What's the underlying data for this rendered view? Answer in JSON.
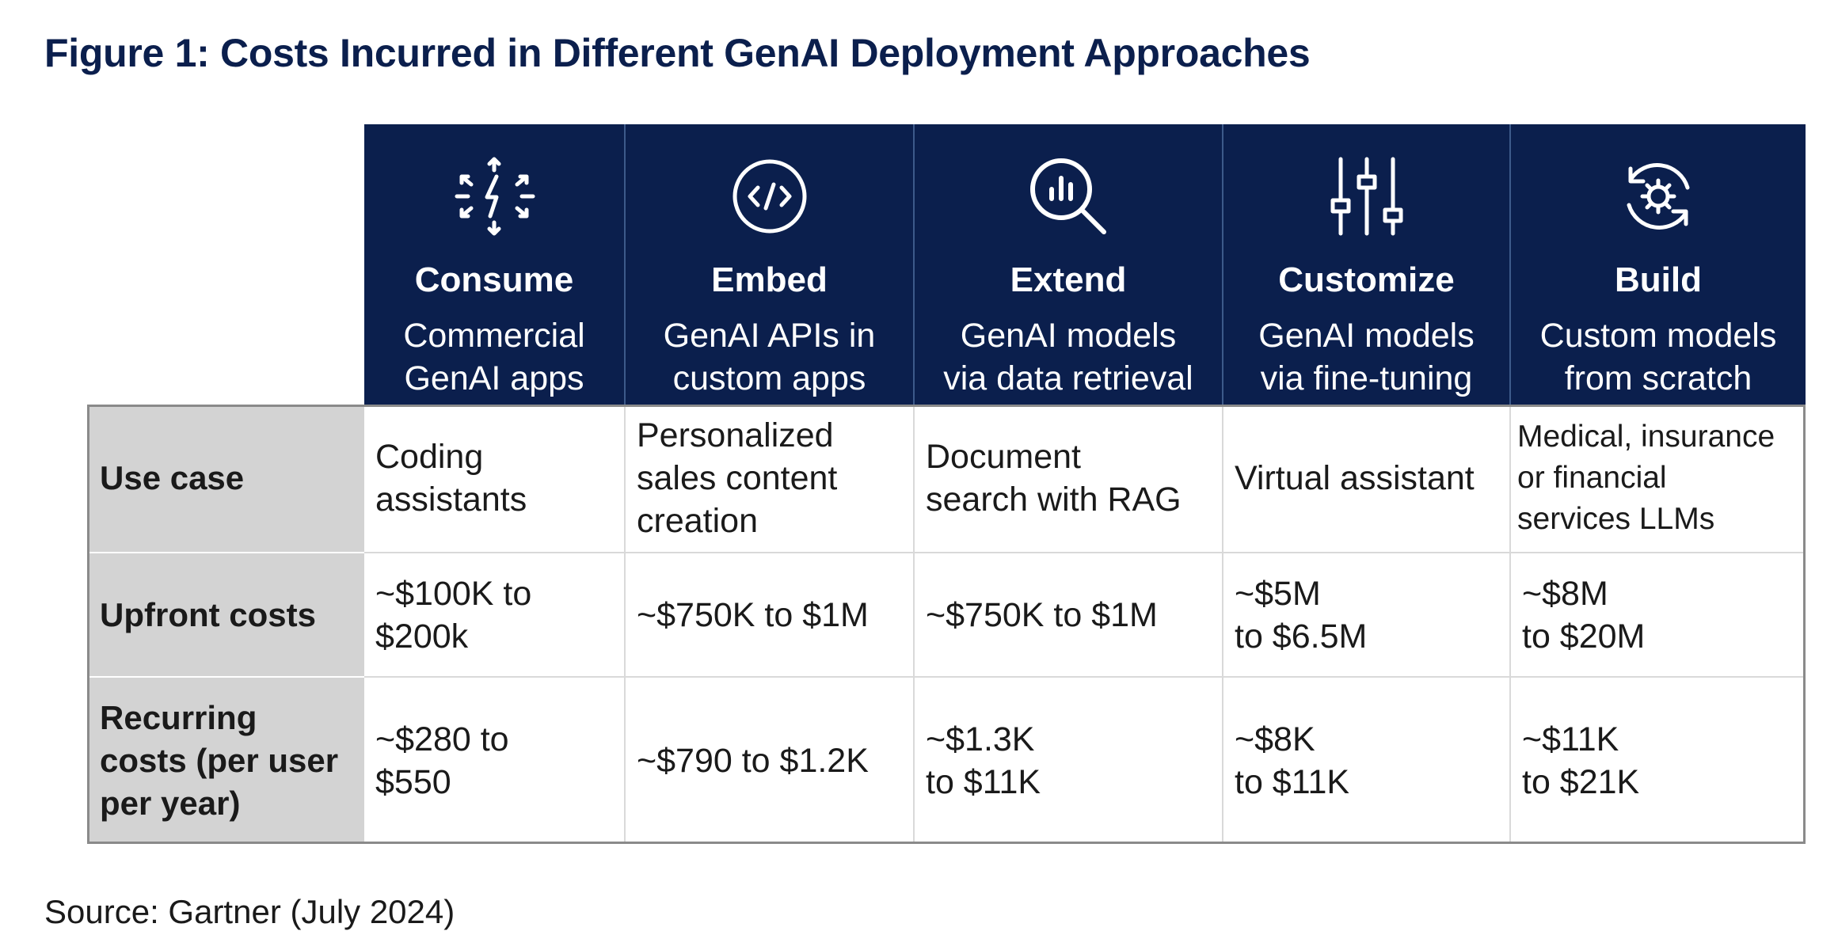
{
  "title": "Figure 1: Costs Incurred in Different GenAI Deployment Approaches",
  "source": "Source: Gartner (July 2024)",
  "colors": {
    "header_bg": "#0b1f4d",
    "label_bg": "#d3d3d3",
    "title": "#0b1f4d"
  },
  "columns": [
    {
      "name": "Consume",
      "desc": "Commercial\nGenAI apps",
      "icon": "network-bolt-icon"
    },
    {
      "name": "Embed",
      "desc": "GenAI APIs in\ncustom apps",
      "icon": "code-icon"
    },
    {
      "name": "Extend",
      "desc": "GenAI models\nvia data retrieval",
      "icon": "search-chart-icon"
    },
    {
      "name": "Customize",
      "desc": "GenAI models\nvia fine-tuning",
      "icon": "sliders-icon"
    },
    {
      "name": "Build",
      "desc": "Custom models\nfrom scratch",
      "icon": "refresh-gear-icon"
    }
  ],
  "rows": [
    {
      "label": "Use case",
      "cells": [
        "Coding\nassistants",
        "Personalized\nsales content\ncreation",
        "Document\nsearch with RAG",
        "Virtual assistant",
        "Medical, insurance\nor financial\nservices LLMs"
      ]
    },
    {
      "label": "Upfront costs",
      "cells": [
        "~$100K to\n$200k",
        "~$750K to $1M",
        "~$750K to $1M",
        "~$5M\nto $6.5M",
        "~$8M\nto $20M"
      ]
    },
    {
      "label": "Recurring\ncosts (per user\nper year)",
      "cells": [
        "~$280 to\n$550",
        "~$790 to $1.2K",
        "~$1.3K\nto $11K",
        "~$8K\nto $11K",
        "~$11K\nto $21K"
      ]
    }
  ]
}
